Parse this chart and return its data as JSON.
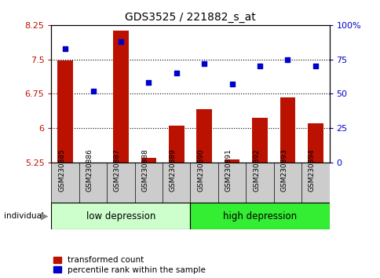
{
  "title": "GDS3525 / 221882_s_at",
  "samples": [
    "GSM230885",
    "GSM230886",
    "GSM230887",
    "GSM230888",
    "GSM230889",
    "GSM230890",
    "GSM230891",
    "GSM230892",
    "GSM230893",
    "GSM230894"
  ],
  "transformed_count": [
    7.47,
    5.22,
    8.12,
    5.35,
    6.05,
    6.42,
    5.32,
    6.22,
    6.68,
    6.1
  ],
  "percentile_rank": [
    83,
    52,
    88,
    58,
    65,
    72,
    57,
    70,
    75,
    70
  ],
  "ylim_left": [
    5.25,
    8.25
  ],
  "ylim_right": [
    0,
    100
  ],
  "yticks_left": [
    5.25,
    6.0,
    6.75,
    7.5,
    8.25
  ],
  "yticks_right": [
    0,
    25,
    50,
    75,
    100
  ],
  "ytick_labels_left": [
    "5.25",
    "6",
    "6.75",
    "7.5",
    "8.25"
  ],
  "ytick_labels_right": [
    "0",
    "25",
    "50",
    "75",
    "100%"
  ],
  "bar_color": "#bb1100",
  "scatter_color": "#0000cc",
  "group1_label": "low depression",
  "group2_label": "high depression",
  "group1_count": 5,
  "group2_count": 5,
  "group1_bg": "#ccffcc",
  "group2_bg": "#33ee33",
  "legend_bar_label": "transformed count",
  "legend_scatter_label": "percentile rank within the sample",
  "individual_label": "individual",
  "xlabel_gray_bg": "#cccccc",
  "dotted_line_color": "#000000",
  "plot_bg": "#ffffff",
  "border_color": "#000000"
}
